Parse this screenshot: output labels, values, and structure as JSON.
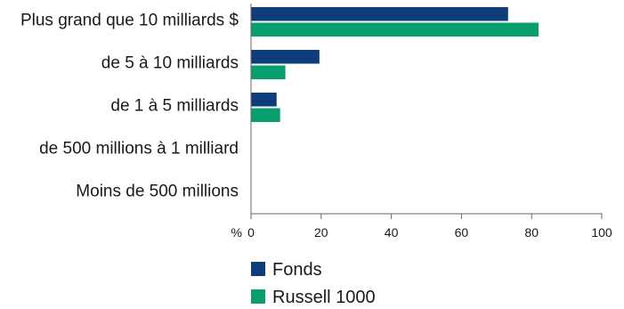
{
  "chart_data": {
    "type": "bar",
    "orientation": "horizontal",
    "categories": [
      "Plus grand que 10 milliards $",
      "de 5 à 10 milliards",
      "de 1 à 5 milliards",
      "de 500 millions à 1 milliard",
      "Moins de 500 millions"
    ],
    "series": [
      {
        "name": "Fonds",
        "color": "#0f3d7a",
        "values": [
          73.3,
          19.5,
          7.3,
          0,
          0
        ]
      },
      {
        "name": "Russell 1000",
        "color": "#0a9e6e",
        "values": [
          82,
          9.8,
          8.3,
          0,
          0
        ]
      }
    ],
    "xlim": [
      0,
      100
    ],
    "xticks": [
      0,
      20,
      40,
      60,
      80,
      100
    ],
    "x_unit_label": "%",
    "title": "",
    "xlabel": "",
    "ylabel": "",
    "grid": false,
    "legend_position": "bottom"
  }
}
